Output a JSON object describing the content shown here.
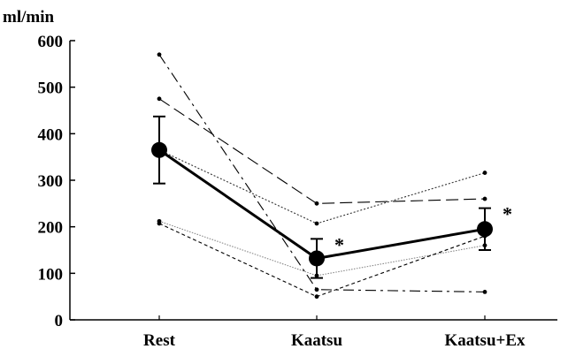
{
  "chart_data": {
    "type": "line",
    "unit_label": "ml/min",
    "categories": [
      "Rest",
      "Kaatsu",
      "Kaatsu+Ex"
    ],
    "ylim": [
      0,
      600
    ],
    "yticks": [
      0,
      100,
      200,
      300,
      400,
      500,
      600
    ],
    "grid": false,
    "individual_series": [
      {
        "values": [
          570,
          65,
          60
        ],
        "style": "dash-dot"
      },
      {
        "values": [
          475,
          250,
          260
        ],
        "style": "long-dash"
      },
      {
        "values": [
          365,
          207,
          316
        ],
        "style": "dotted"
      },
      {
        "values": [
          212,
          95,
          160
        ],
        "style": "fine-dotted"
      },
      {
        "values": [
          207,
          50,
          180
        ],
        "style": "short-dash"
      }
    ],
    "mean_series": {
      "values": [
        365,
        132,
        195
      ],
      "error": [
        72,
        42,
        45
      ]
    },
    "significance": [
      {
        "category": "Kaatsu",
        "label": "*"
      },
      {
        "category": "Kaatsu+Ex",
        "label": "*"
      }
    ],
    "colors": {
      "line": "#000000",
      "light": "#888888",
      "background": "#ffffff"
    }
  }
}
